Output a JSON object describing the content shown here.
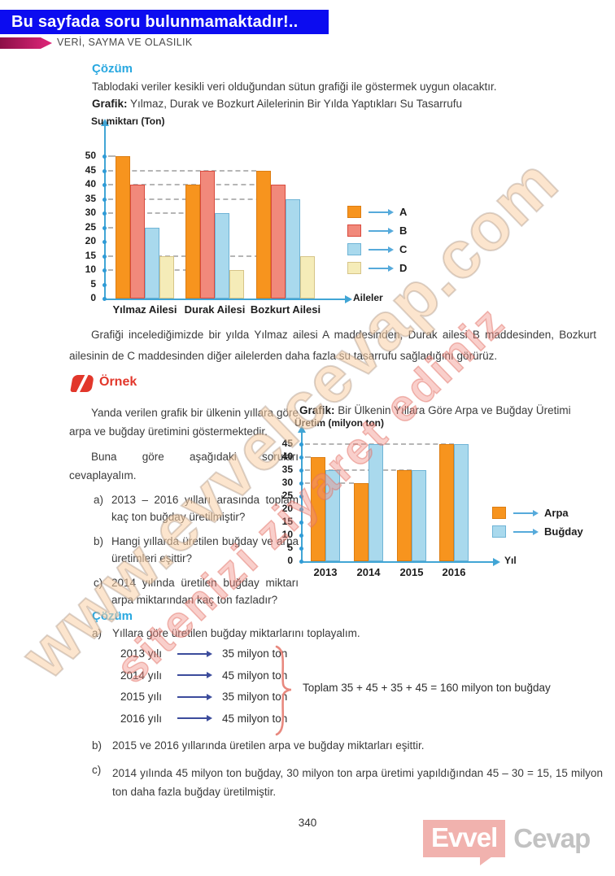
{
  "banner": {
    "text": "Bu sayfada soru bulunmamaktadır!.."
  },
  "header": {
    "title": "VERİ, SAYMA VE OLASILIK"
  },
  "solution1": {
    "heading": "Çözüm",
    "intro": "Tablodaki veriler kesikli veri olduğundan sütun grafiği ile göstermek uygun olacaktır.",
    "graph_label": "Grafik:",
    "graph_title": "Yılmaz, Durak ve Bozkurt Ailelerinin Bir Yılda Yaptıkları Su Tasarrufu",
    "conclusion": "Grafiği incelediğimizde bir yılda Yılmaz ailesi A maddesinden, Durak ailesi B maddesinden, Bozkurt ailesinin de C maddesinden diğer ailelerden daha fazla su tasarrufu sağladığını görürüz."
  },
  "example": {
    "heading": "Örnek",
    "para1": "Yanda verilen grafik bir ülkenin yıllara göre arpa ve buğday üretimini göstermektedir.",
    "para2": "Buna göre aşağıdaki soruları cevaplayalım.",
    "questions": [
      {
        "label": "a)",
        "text": "2013 – 2016 yılları arasında toplam kaç ton buğday üretilmiştir?"
      },
      {
        "label": "b)",
        "text": "Hangi yıllarda üretilen buğday ve arpa üretimleri eşittir?"
      },
      {
        "label": "c)",
        "text": "2014 yılında üretilen buğday miktarı arpa miktarından kaç ton fazladır?"
      }
    ],
    "graph_label": "Grafik:",
    "graph_title": "Bir Ülkenin Yıllara Göre Arpa ve Buğday Üretimi"
  },
  "solution2": {
    "heading": "Çözüm",
    "a_label": "a)",
    "a_text": "Yıllara göre üretilen buğday miktarlarını toplayalım.",
    "rows": [
      {
        "year": "2013 yılı",
        "value": "35 milyon ton"
      },
      {
        "year": "2014 yılı",
        "value": "45 milyon ton"
      },
      {
        "year": "2015 yılı",
        "value": "35 milyon ton"
      },
      {
        "year": "2016 yılı",
        "value": "45 milyon ton"
      }
    ],
    "total": "Toplam 35 + 45 + 35 + 45 = 160 milyon ton buğday",
    "b_label": "b)",
    "b_text": "2015 ve 2016 yıllarında üretilen arpa ve buğday miktarları eşittir.",
    "c_label": "c)",
    "c_text": "2014 yılında 45 milyon ton buğday, 30 milyon ton arpa üretimi yapıldığından 45 – 30 = 15, 15 milyon ton daha fazla buğday üretilmiştir."
  },
  "footer": {
    "page_number": "340",
    "logo_primary": "Evvel",
    "logo_secondary": "Cevap"
  },
  "watermark": {
    "line1": "www.evvelcevap.com",
    "line2": "sitenizi ziyaret ediniz"
  },
  "chart_data": [
    {
      "type": "bar",
      "title": "Yılmaz, Durak ve Bozkurt Ailelerinin Bir Yılda Yaptıkları Su Tasarrufu",
      "ylabel": "Su miktarı (Ton)",
      "xlabel": "Aileler",
      "categories": [
        "Yılmaz Ailesi",
        "Durak Ailesi",
        "Bozkurt Ailesi"
      ],
      "series": [
        {
          "name": "A",
          "color": "#F7941E",
          "border": "#DC7D12",
          "values": [
            50,
            40,
            45
          ]
        },
        {
          "name": "B",
          "color": "#F1897B",
          "border": "#D94A3D",
          "values": [
            40,
            45,
            40
          ]
        },
        {
          "name": "C",
          "color": "#A9D9ED",
          "border": "#6FB4D6",
          "values": [
            25,
            30,
            35
          ]
        },
        {
          "name": "D",
          "color": "#F5ECB8",
          "border": "#D6C488",
          "values": [
            15,
            10,
            15
          ]
        }
      ],
      "ylim": [
        0,
        50
      ],
      "ytick_step": 5,
      "grid": "dashed-to-bar",
      "legend_position": "right"
    },
    {
      "type": "bar",
      "title": "Bir Ülkenin Yıllara Göre Arpa ve Buğday Üretimi",
      "ylabel": "Üretim (milyon ton)",
      "xlabel": "Yıl",
      "categories": [
        "2013",
        "2014",
        "2015",
        "2016"
      ],
      "series": [
        {
          "name": "Arpa",
          "color": "#F7941E",
          "border": "#DC7D12",
          "values": [
            40,
            30,
            35,
            45
          ]
        },
        {
          "name": "Buğday",
          "color": "#A9D9ED",
          "border": "#6FB4D6",
          "values": [
            35,
            45,
            35,
            45
          ]
        }
      ],
      "ylim": [
        0,
        45
      ],
      "ytick_step": 5,
      "grid": "dashed-to-bar",
      "legend_position": "right"
    }
  ]
}
